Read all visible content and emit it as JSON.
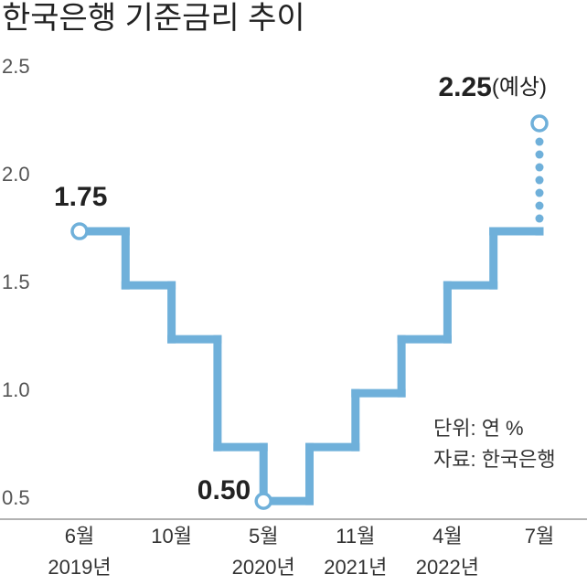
{
  "chart_data": {
    "type": "step",
    "title": "한국은행 기준금리 추이",
    "categories": [
      "6월",
      null,
      "10월",
      null,
      "5월",
      null,
      "11월",
      null,
      "4월",
      null,
      "7월"
    ],
    "years": [
      "2019년",
      null,
      null,
      null,
      "2020년",
      null,
      "2021년",
      null,
      "2022년",
      null,
      null
    ],
    "values": [
      1.75,
      1.5,
      1.25,
      0.75,
      0.5,
      0.75,
      1.0,
      1.25,
      1.5,
      1.75,
      1.75
    ],
    "value_labels": [
      "1.75",
      null,
      null,
      null,
      "0.50",
      null,
      null,
      null,
      null,
      null,
      null
    ],
    "projected_values": [
      null,
      null,
      null,
      null,
      null,
      null,
      null,
      null,
      null,
      null,
      2.25
    ],
    "projected_value_labels": [
      null,
      null,
      null,
      null,
      null,
      null,
      null,
      null,
      null,
      null,
      "2.25"
    ],
    "projected_note": "(예상)",
    "color": "#6fb0da",
    "ylim": [
      0.42,
      2.57
    ],
    "yticks": [
      {
        "value": 0.5,
        "label": "0.5"
      },
      {
        "value": 1.0,
        "label": "1.0"
      },
      1.5,
      {
        "value": 2.0,
        "label": "2.0"
      },
      2.5
    ],
    "notes": [
      "단위: 연 %",
      "자료: 한국은행"
    ]
  }
}
